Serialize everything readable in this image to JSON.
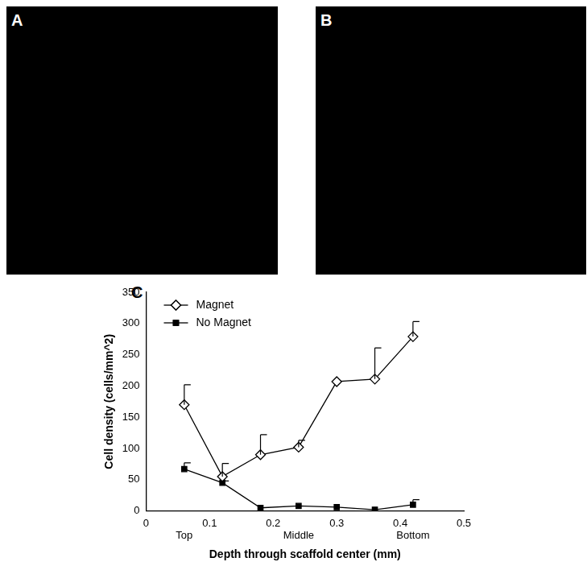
{
  "panel_labels": [
    "A",
    "B",
    "C"
  ],
  "chart_data": {
    "type": "line",
    "x_label": "Depth through scaffold center (mm)",
    "y_label": "Cell density (cells/mm^2)",
    "xlim": [
      0,
      0.5
    ],
    "xticks": [
      0,
      0.1,
      0.2,
      0.3,
      0.4,
      0.5
    ],
    "ylim": [
      0,
      350
    ],
    "yticks": [
      0,
      50,
      100,
      150,
      200,
      250,
      300,
      350
    ],
    "grid": false,
    "legend": "upper left",
    "annotations": [
      {
        "text": "Top",
        "x": 0.06
      },
      {
        "text": "Middle",
        "x": 0.24
      },
      {
        "text": "Bottom",
        "x": 0.42
      }
    ],
    "x": [
      0.06,
      0.12,
      0.18,
      0.24,
      0.3,
      0.36,
      0.42
    ],
    "series": [
      {
        "name": "Magnet",
        "color": "#000000",
        "marker": "hollow_diamond",
        "line_style": "solid",
        "values": [
          170,
          55,
          90,
          102,
          207,
          211,
          279
        ],
        "errors": [
          32,
          21,
          32,
          11,
          0,
          50,
          24
        ]
      },
      {
        "name": "No Magnet",
        "color": "#000000",
        "marker": "square",
        "line_style": "solid",
        "values": [
          67,
          45,
          5,
          8,
          6,
          2,
          10
        ],
        "errors": [
          10,
          3,
          0,
          0,
          0,
          0,
          8
        ]
      }
    ]
  }
}
